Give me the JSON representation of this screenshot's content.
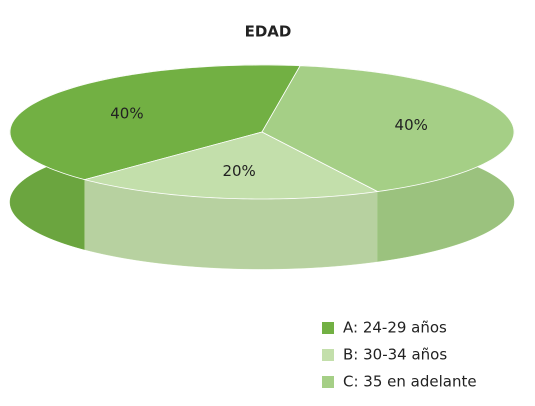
{
  "chart_data": {
    "type": "pie3d",
    "title": "EDAD",
    "categories": [
      "A: 24-29 años",
      "B: 30-34 años",
      "C: 35 en adelante"
    ],
    "values": [
      40,
      20,
      40
    ],
    "value_labels": [
      "40%",
      "20%",
      "40%"
    ],
    "colors": [
      "#72b043",
      "#c3dfab",
      "#a5cf86"
    ],
    "legend": "bottom-right"
  }
}
